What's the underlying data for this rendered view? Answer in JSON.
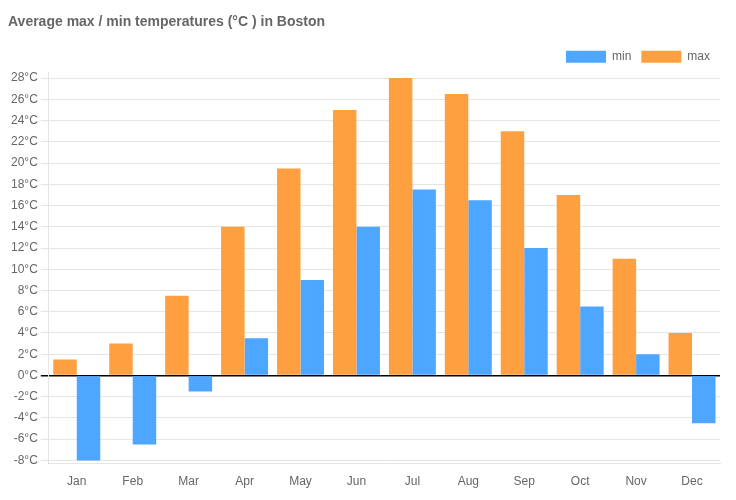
{
  "chart_data": {
    "type": "bar",
    "title": "Average max / min temperatures (°C ) in Boston",
    "categories": [
      "Jan",
      "Feb",
      "Mar",
      "Apr",
      "May",
      "Jun",
      "Jul",
      "Aug",
      "Sep",
      "Oct",
      "Nov",
      "Dec"
    ],
    "series": [
      {
        "name": "max",
        "color": "#FFA040",
        "values": [
          1.5,
          3,
          7.5,
          14,
          19.5,
          25,
          28,
          26.5,
          23,
          17,
          11,
          4
        ]
      },
      {
        "name": "min",
        "color": "#4DA6FF",
        "values": [
          -8,
          -6.5,
          -1.5,
          3.5,
          9,
          14,
          17.5,
          16.5,
          12,
          6.5,
          2,
          -4.5
        ]
      }
    ],
    "ylim": [
      -8.3,
      28.5
    ],
    "yticks": [
      {
        "value": -8,
        "label": "-8°C"
      },
      {
        "value": -6,
        "label": "-6°C"
      },
      {
        "value": -4,
        "label": "-4°C"
      },
      {
        "value": -2,
        "label": "-2°C"
      },
      {
        "value": 0,
        "label": "0°C"
      },
      {
        "value": 2,
        "label": "2°C"
      },
      {
        "value": 4,
        "label": "4°C"
      },
      {
        "value": 6,
        "label": "6°C"
      },
      {
        "value": 8,
        "label": "8°C"
      },
      {
        "value": 10,
        "label": "10°C"
      },
      {
        "value": 12,
        "label": "12°C"
      },
      {
        "value": 14,
        "label": "14°C"
      },
      {
        "value": 16,
        "label": "16°C"
      },
      {
        "value": 18,
        "label": "18°C"
      },
      {
        "value": 20,
        "label": "20°C"
      },
      {
        "value": 22,
        "label": "22°C"
      },
      {
        "value": 24,
        "label": "24°C"
      },
      {
        "value": 26,
        "label": "26°C"
      },
      {
        "value": 28,
        "label": "28°C"
      }
    ],
    "grid": true,
    "legend": "upper right"
  }
}
